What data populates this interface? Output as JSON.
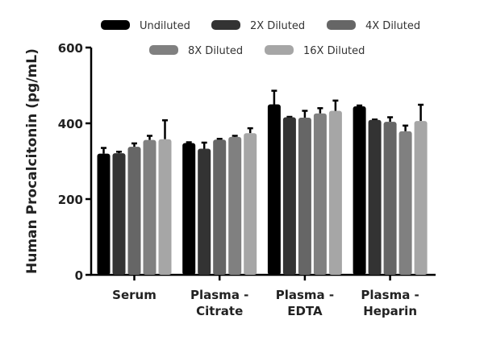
{
  "chart_data": {
    "type": "bar",
    "ylabel": "Human Procalcitonin (pg/mL)",
    "ylim": [
      0,
      600
    ],
    "yticks": [
      0,
      200,
      400,
      600
    ],
    "categories": [
      [
        "Serum"
      ],
      [
        "Plasma -",
        "Citrate"
      ],
      [
        "Plasma -",
        "EDTA"
      ],
      [
        "Plasma -",
        "Heparin"
      ]
    ],
    "legend_placement": "top",
    "series": [
      {
        "name": "Undiluted",
        "color": "#000000",
        "values": [
          320,
          348,
          450,
          445
        ],
        "error_top": [
          335,
          350,
          486,
          447
        ]
      },
      {
        "name": "2X Diluted",
        "color": "#333333",
        "values": [
          321,
          333,
          416,
          409
        ],
        "error_top": [
          325,
          349,
          417,
          410
        ]
      },
      {
        "name": "4X Diluted",
        "color": "#666666",
        "values": [
          338,
          357,
          415,
          404
        ],
        "error_top": [
          347,
          359,
          433,
          416
        ]
      },
      {
        "name": "8X Diluted",
        "color": "#808080",
        "values": [
          356,
          364,
          426,
          379
        ],
        "error_top": [
          367,
          367,
          440,
          394
        ]
      },
      {
        "name": "16X Diluted",
        "color": "#a6a6a6",
        "values": [
          358,
          374,
          433,
          406
        ],
        "error_top": [
          408,
          387,
          460,
          449
        ]
      }
    ]
  }
}
